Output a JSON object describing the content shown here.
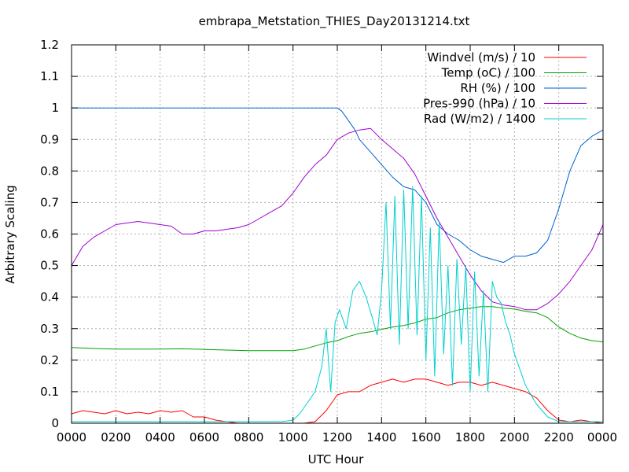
{
  "chart_data": {
    "type": "line",
    "title": "embrapa_Metstation_THIES_Day20131214.txt",
    "xlabel": "UTC Hour",
    "ylabel": "Arbitrary Scaling",
    "xlim": [
      0,
      2400
    ],
    "ylim": [
      0,
      1.2
    ],
    "x_ticks": [
      "0000",
      "0200",
      "0400",
      "0600",
      "0800",
      "1000",
      "1200",
      "1400",
      "1600",
      "1800",
      "2000",
      "2200",
      "0000"
    ],
    "y_ticks": [
      "0",
      "0.1",
      "0.2",
      "0.3",
      "0.4",
      "0.5",
      "0.6",
      "0.7",
      "0.8",
      "0.9",
      "1",
      "1.1",
      "1.2"
    ],
    "grid": true,
    "legend_position": "top-right",
    "series": [
      {
        "name": "Windvel (m/s) / 10",
        "color": "#ff0000",
        "x": [
          0,
          50,
          100,
          150,
          200,
          250,
          300,
          350,
          400,
          450,
          500,
          550,
          600,
          650,
          700,
          750,
          800,
          850,
          900,
          950,
          1000,
          1050,
          1100,
          1150,
          1200,
          1250,
          1300,
          1350,
          1400,
          1450,
          1500,
          1550,
          1600,
          1650,
          1700,
          1750,
          1800,
          1850,
          1900,
          1950,
          2000,
          2050,
          2100,
          2150,
          2200,
          2250,
          2300,
          2350,
          2400
        ],
        "y": [
          0.03,
          0.04,
          0.035,
          0.03,
          0.04,
          0.03,
          0.035,
          0.03,
          0.04,
          0.035,
          0.04,
          0.02,
          0.02,
          0.01,
          0.005,
          0,
          0,
          0,
          0,
          0,
          0,
          0,
          0.005,
          0.04,
          0.09,
          0.1,
          0.1,
          0.12,
          0.13,
          0.14,
          0.13,
          0.14,
          0.14,
          0.13,
          0.12,
          0.13,
          0.13,
          0.12,
          0.13,
          0.12,
          0.11,
          0.1,
          0.08,
          0.04,
          0.01,
          0.005,
          0.01,
          0.005,
          0
        ]
      },
      {
        "name": "Temp (oC) / 100",
        "color": "#00a000",
        "x": [
          0,
          100,
          200,
          300,
          400,
          500,
          600,
          700,
          800,
          900,
          1000,
          1050,
          1100,
          1150,
          1200,
          1250,
          1300,
          1350,
          1400,
          1450,
          1500,
          1550,
          1600,
          1650,
          1700,
          1750,
          1800,
          1850,
          1900,
          1950,
          2000,
          2050,
          2100,
          2150,
          2200,
          2250,
          2300,
          2350,
          2400
        ],
        "y": [
          0.24,
          0.237,
          0.235,
          0.235,
          0.235,
          0.236,
          0.234,
          0.232,
          0.23,
          0.23,
          0.23,
          0.235,
          0.245,
          0.255,
          0.262,
          0.275,
          0.285,
          0.29,
          0.298,
          0.305,
          0.31,
          0.318,
          0.33,
          0.335,
          0.35,
          0.36,
          0.365,
          0.37,
          0.37,
          0.365,
          0.362,
          0.355,
          0.35,
          0.335,
          0.305,
          0.285,
          0.27,
          0.262,
          0.258
        ]
      },
      {
        "name": "RH (%) / 100",
        "color": "#0060d0",
        "x": [
          0,
          200,
          400,
          600,
          800,
          1000,
          1200,
          1220,
          1240,
          1260,
          1280,
          1300,
          1350,
          1400,
          1450,
          1500,
          1550,
          1600,
          1650,
          1700,
          1750,
          1800,
          1850,
          1900,
          1950,
          2000,
          2050,
          2100,
          2150,
          2200,
          2250,
          2300,
          2350,
          2400
        ],
        "y": [
          1,
          1,
          1,
          1,
          1,
          1,
          1,
          0.99,
          0.97,
          0.95,
          0.93,
          0.9,
          0.86,
          0.82,
          0.78,
          0.75,
          0.74,
          0.7,
          0.63,
          0.6,
          0.58,
          0.55,
          0.53,
          0.52,
          0.51,
          0.53,
          0.53,
          0.54,
          0.58,
          0.68,
          0.8,
          0.88,
          0.91,
          0.93
        ]
      },
      {
        "name": "Pres-990 (hPa) / 10",
        "color": "#a000d0",
        "x": [
          0,
          50,
          100,
          150,
          200,
          250,
          300,
          350,
          400,
          450,
          500,
          550,
          600,
          650,
          700,
          750,
          800,
          850,
          900,
          950,
          1000,
          1050,
          1100,
          1150,
          1200,
          1250,
          1300,
          1350,
          1400,
          1450,
          1500,
          1550,
          1600,
          1650,
          1700,
          1750,
          1800,
          1850,
          1900,
          1950,
          2000,
          2050,
          2100,
          2150,
          2200,
          2250,
          2300,
          2350,
          2400
        ],
        "y": [
          0.5,
          0.56,
          0.59,
          0.61,
          0.63,
          0.635,
          0.64,
          0.635,
          0.63,
          0.625,
          0.6,
          0.6,
          0.61,
          0.61,
          0.615,
          0.62,
          0.63,
          0.65,
          0.67,
          0.69,
          0.73,
          0.78,
          0.82,
          0.85,
          0.9,
          0.92,
          0.93,
          0.935,
          0.9,
          0.87,
          0.84,
          0.79,
          0.72,
          0.65,
          0.59,
          0.53,
          0.47,
          0.42,
          0.385,
          0.375,
          0.37,
          0.36,
          0.36,
          0.38,
          0.41,
          0.45,
          0.5,
          0.55,
          0.63
        ]
      },
      {
        "name": "Rad (W/m2) / 1400",
        "color": "#00d0d0",
        "x": [
          0,
          100,
          200,
          300,
          400,
          500,
          600,
          700,
          800,
          900,
          950,
          1000,
          1030,
          1060,
          1100,
          1130,
          1150,
          1170,
          1190,
          1210,
          1240,
          1270,
          1300,
          1330,
          1360,
          1380,
          1400,
          1420,
          1440,
          1460,
          1480,
          1500,
          1520,
          1540,
          1560,
          1580,
          1600,
          1620,
          1640,
          1660,
          1680,
          1700,
          1720,
          1740,
          1760,
          1780,
          1800,
          1820,
          1840,
          1860,
          1880,
          1900,
          1920,
          1940,
          1960,
          1980,
          2000,
          2050,
          2100,
          2150,
          2200,
          2300,
          2400
        ],
        "y": [
          0.005,
          0.005,
          0.005,
          0.005,
          0.005,
          0.005,
          0.005,
          0.005,
          0.005,
          0.005,
          0.005,
          0.01,
          0.03,
          0.06,
          0.1,
          0.18,
          0.3,
          0.1,
          0.32,
          0.36,
          0.3,
          0.42,
          0.45,
          0.4,
          0.33,
          0.28,
          0.42,
          0.7,
          0.3,
          0.72,
          0.25,
          0.74,
          0.3,
          0.75,
          0.28,
          0.72,
          0.2,
          0.62,
          0.15,
          0.64,
          0.22,
          0.5,
          0.12,
          0.52,
          0.25,
          0.5,
          0.1,
          0.48,
          0.15,
          0.42,
          0.1,
          0.45,
          0.4,
          0.38,
          0.32,
          0.28,
          0.22,
          0.12,
          0.06,
          0.02,
          0.005,
          0.005,
          0.005
        ]
      }
    ]
  }
}
